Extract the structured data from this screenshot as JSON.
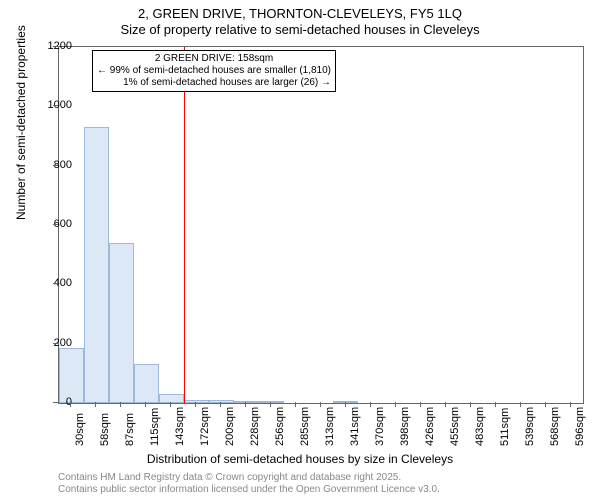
{
  "title_line1": "2, GREEN DRIVE, THORNTON-CLEVELEYS, FY5 1LQ",
  "title_line2": "Size of property relative to semi-detached houses in Cleveleys",
  "y_axis_label": "Number of semi-detached properties",
  "x_axis_label": "Distribution of semi-detached houses by size in Cleveleys",
  "footer_line1": "Contains HM Land Registry data © Crown copyright and database right 2025.",
  "footer_line2": "Contains public sector information licensed under the Open Government Licence v3.0.",
  "chart": {
    "type": "bar",
    "ylim": [
      0,
      1200
    ],
    "yticks": [
      0,
      200,
      400,
      600,
      800,
      1000,
      1200
    ],
    "xtick_labels": [
      "30sqm",
      "58sqm",
      "87sqm",
      "115sqm",
      "143sqm",
      "172sqm",
      "200sqm",
      "228sqm",
      "256sqm",
      "285sqm",
      "313sqm",
      "341sqm",
      "370sqm",
      "398sqm",
      "426sqm",
      "455sqm",
      "483sqm",
      "511sqm",
      "539sqm",
      "568sqm",
      "596sqm"
    ],
    "x_data_min": 30,
    "x_data_max": 596,
    "values": [
      185,
      930,
      540,
      130,
      30,
      10,
      10,
      5,
      3,
      0,
      0,
      2,
      0,
      0,
      0,
      0,
      0,
      0,
      0,
      0,
      0
    ],
    "bar_fill": "#dce8f6",
    "bar_border": "#9fb8d9",
    "background_color": "#ffffff",
    "reference_line_x": 158,
    "reference_line_color": "#ff0000",
    "annotation_title": "2 GREEN DRIVE: 158sqm",
    "annotation_line1": "← 99% of semi-detached houses are smaller (1,810)",
    "annotation_line2": "1% of semi-detached houses are larger (26) →",
    "title_fontsize": 13,
    "label_fontsize": 12,
    "tick_fontsize": 11,
    "annotation_fontsize": 10
  }
}
